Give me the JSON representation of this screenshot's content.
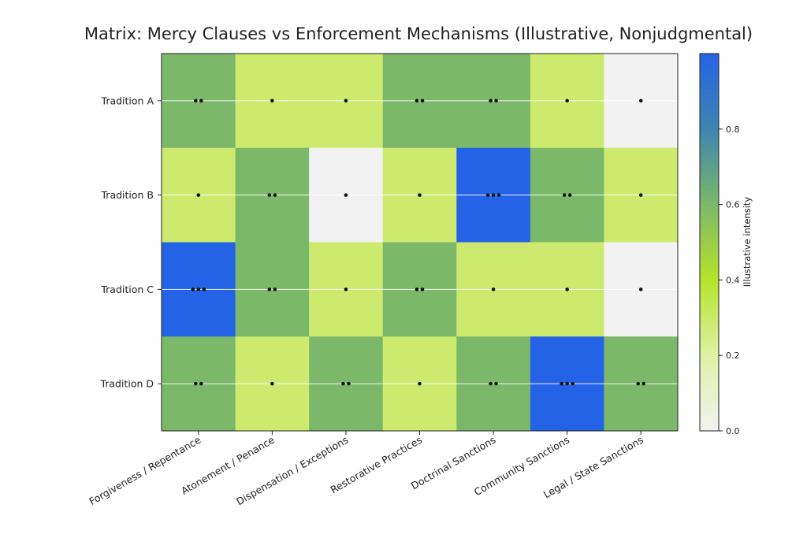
{
  "chart_data": {
    "type": "heatmap",
    "title": "Matrix: Mercy Clauses vs Enforcement Mechanisms (Illustrative, Nonjudgmental)",
    "rows": [
      "Tradition A",
      "Tradition B",
      "Tradition C",
      "Tradition D"
    ],
    "columns": [
      "Forgiveness / Repentance",
      "Atonement / Penance",
      "Dispensation / Exceptions",
      "Restorative Practices",
      "Doctrinal Sanctions",
      "Community Sanctions",
      "Legal / State Sanctions"
    ],
    "levels": [
      [
        2,
        1,
        1,
        2,
        2,
        1,
        1
      ],
      [
        1,
        2,
        1,
        1,
        3,
        2,
        1
      ],
      [
        3,
        2,
        1,
        2,
        1,
        1,
        1
      ],
      [
        2,
        1,
        2,
        1,
        2,
        3,
        2
      ]
    ],
    "values": [
      [
        0.6,
        0.3,
        0.3,
        0.6,
        0.6,
        0.3,
        0.0
      ],
      [
        0.3,
        0.6,
        0.0,
        0.3,
        1.0,
        0.6,
        0.3
      ],
      [
        1.0,
        0.6,
        0.3,
        0.6,
        0.3,
        0.3,
        0.0
      ],
      [
        0.6,
        0.3,
        0.6,
        0.3,
        0.6,
        1.0,
        0.6
      ]
    ],
    "colorbar": {
      "label": "Illustrative intensity",
      "ticks": [
        "0.0",
        "0.2",
        "0.4",
        "0.6",
        "0.8"
      ],
      "range": [
        0,
        1
      ],
      "colors": [
        "#f2f2f2",
        "#cdea6f",
        "#b6e32a",
        "#7cb86a",
        "#3f84b0",
        "#2563e6"
      ]
    }
  }
}
